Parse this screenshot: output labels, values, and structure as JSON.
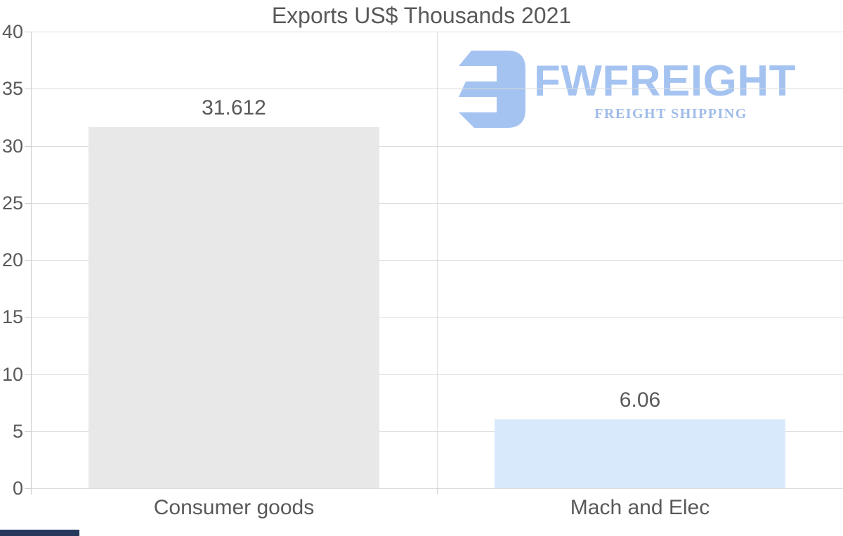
{
  "page": {
    "background": "#ffffff",
    "scrollbar_thumb_color": "#26395d"
  },
  "chart_data": {
    "type": "bar",
    "title": "Exports US$ Thousands 2021",
    "categories": [
      "Consumer goods",
      "Mach and Elec"
    ],
    "values": [
      31.612,
      6.06
    ],
    "value_labels": [
      "31.612",
      "6.06"
    ],
    "xlabel": "",
    "ylabel": "",
    "ylim": [
      0,
      40
    ],
    "yticks": [
      0,
      5,
      10,
      15,
      20,
      25,
      30,
      35,
      40
    ],
    "grid": true,
    "legend_position": "none",
    "bar_colors": [
      "#e8e8e8",
      "#d8e9fb"
    ],
    "label_color": "#595959",
    "grid_color": "#dcdcdc",
    "axis_color": "#cfcfcf"
  },
  "logo": {
    "brand": "FWFREIGHT",
    "tagline": "FREIGHT SHIPPING",
    "brand_color": "#a5c3f1",
    "tagline_color": "#9fbce9",
    "icon_color": "#a9c6f3",
    "icon": "fw-freight-mark"
  }
}
